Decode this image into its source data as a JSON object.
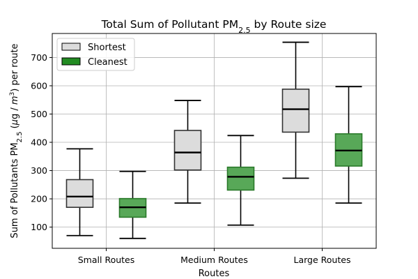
{
  "chart_data": {
    "type": "boxplot",
    "title": "Total Sum of Pollutant PM",
    "title_subscript": "2.5",
    "title_suffix": " by Route size",
    "xlabel": "Routes",
    "ylabel": {
      "prefix": "Sum of Pollutants PM",
      "subscript": "2.5",
      "unit_open": " (",
      "mu": "μ",
      "g": "g",
      "slash": " / ",
      "m": "m",
      "sup": "3",
      "suffix": ") per route"
    },
    "categories": [
      "Small Routes",
      "Medium Routes",
      "Large Routes"
    ],
    "ylim": [
      25,
      785
    ],
    "yticks": [
      100,
      200,
      300,
      400,
      500,
      600,
      700
    ],
    "grid": true,
    "legend_position": "upper-left",
    "series": [
      {
        "name": "Shortest",
        "color": "#dcdcdc",
        "edge_color": "#333333",
        "boxes": [
          {
            "whislo": 70,
            "q1": 170,
            "med": 208,
            "q3": 268,
            "whishi": 377
          },
          {
            "whislo": 185,
            "q1": 302,
            "med": 364,
            "q3": 442,
            "whishi": 548
          },
          {
            "whislo": 273,
            "q1": 436,
            "med": 517,
            "q3": 588,
            "whishi": 754
          }
        ]
      },
      {
        "name": "Cleanest",
        "color": "#58a858",
        "edge_color": "#2a7a2a",
        "legend_color": "#228b22",
        "boxes": [
          {
            "whislo": 60,
            "q1": 135,
            "med": 170,
            "q3": 201,
            "whishi": 297
          },
          {
            "whislo": 107,
            "q1": 231,
            "med": 278,
            "q3": 312,
            "whishi": 424
          },
          {
            "whislo": 185,
            "q1": 316,
            "med": 371,
            "q3": 430,
            "whishi": 597
          }
        ]
      }
    ]
  }
}
